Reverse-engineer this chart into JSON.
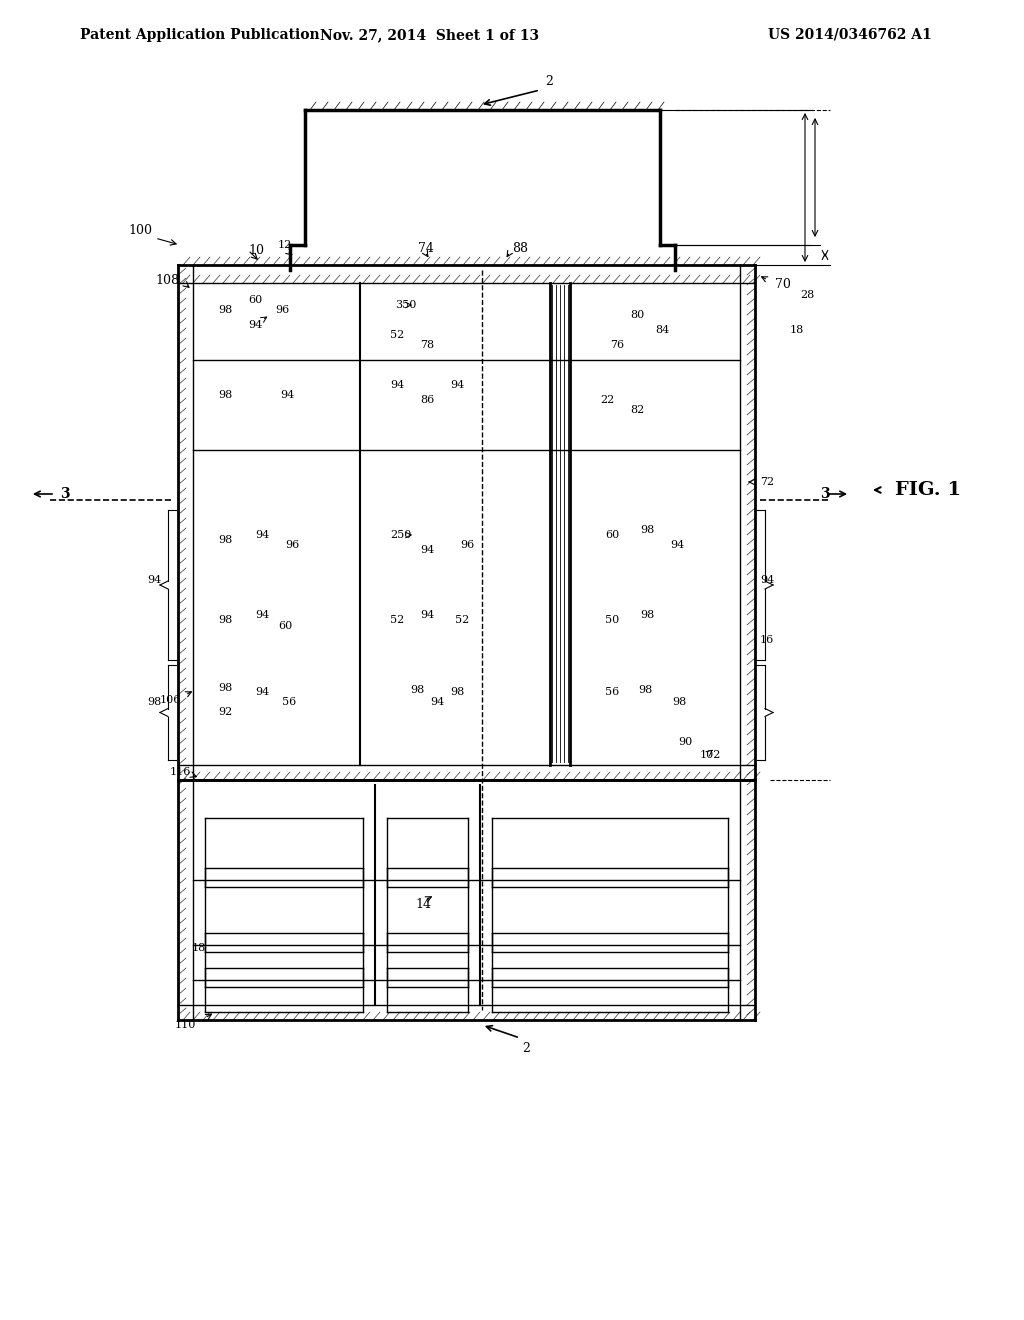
{
  "bg_color": "#ffffff",
  "line_color": "#000000",
  "header_left": "Patent Application Publication",
  "header_mid": "Nov. 27, 2014  Sheet 1 of 13",
  "header_right": "US 2014/0346762 A1",
  "fig_label": "FIG. 1",
  "title_font": 11,
  "label_font": 9
}
